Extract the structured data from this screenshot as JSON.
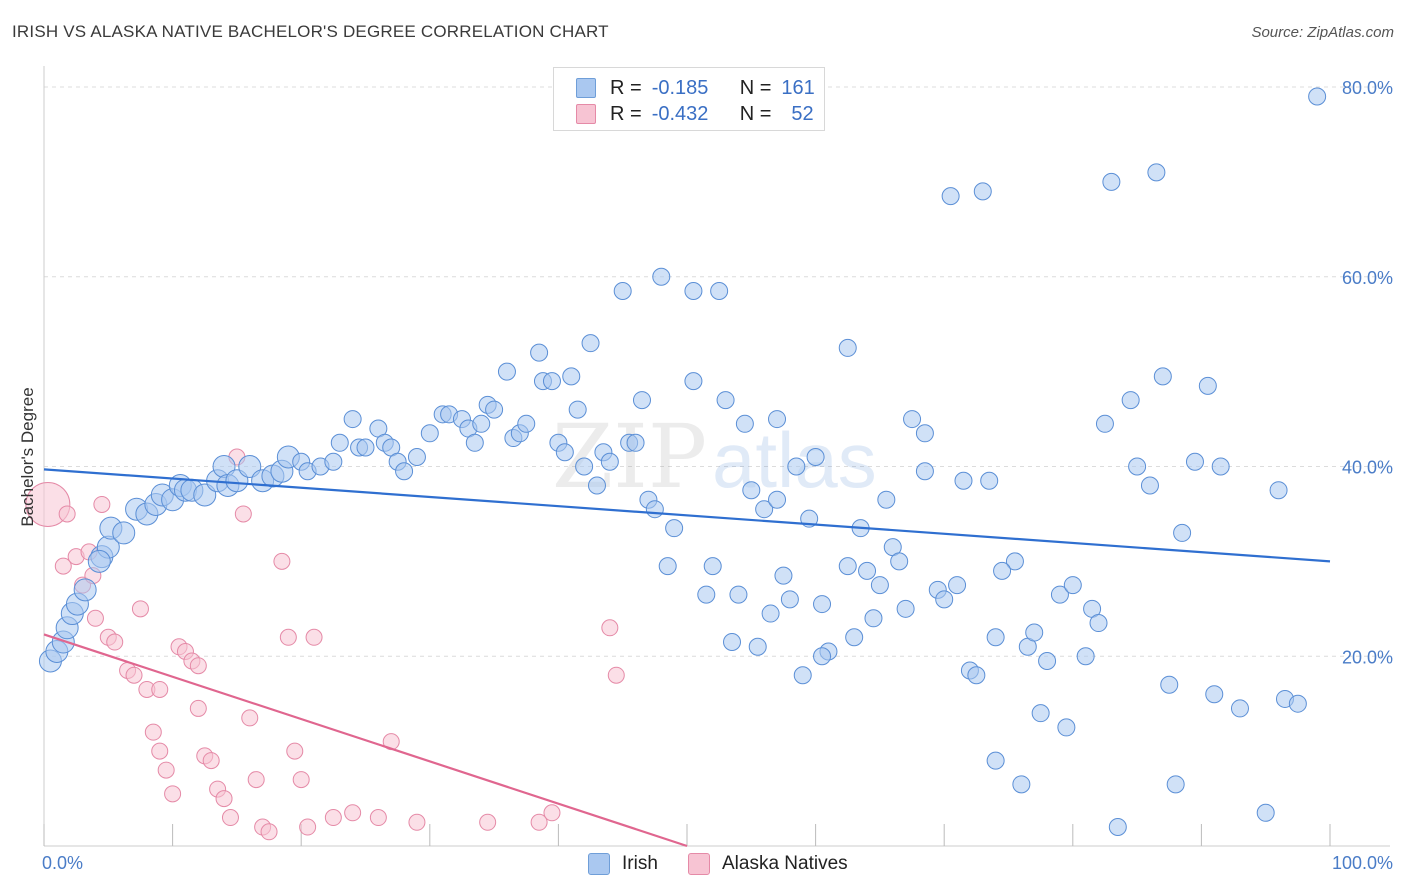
{
  "header": {
    "title": "IRISH VS ALASKA NATIVE BACHELOR'S DEGREE CORRELATION CHART",
    "source": "Source: ZipAtlas.com"
  },
  "legend": {
    "rows": [
      {
        "r_label": "R =",
        "r_value": "-0.185",
        "n_label": "N =",
        "n_value": "161",
        "color": "#aac8f0",
        "border": "#6f9ed8"
      },
      {
        "r_label": "R =",
        "r_value": "-0.432",
        "n_label": "N =",
        "n_value": "52",
        "color": "#f7c4d3",
        "border": "#e58aa7"
      }
    ]
  },
  "bottom_legend": [
    {
      "label": "Irish",
      "color": "#aac8f0",
      "border": "#6f9ed8"
    },
    {
      "label": "Alaska Natives",
      "color": "#f7c4d3",
      "border": "#e58aa7"
    }
  ],
  "watermark": {
    "zip": "ZIP",
    "atlas": "atlas"
  },
  "chart_data": {
    "type": "scatter",
    "title": "IRISH VS ALASKA NATIVE BACHELOR'S DEGREE CORRELATION CHART",
    "xlabel": "",
    "ylabel": "Bachelor's Degree",
    "xlim": [
      0,
      100
    ],
    "ylim": [
      0,
      80
    ],
    "x_tick_labels": [
      "0.0%",
      "100.0%"
    ],
    "y_tick_labels": [
      "20.0%",
      "40.0%",
      "60.0%",
      "80.0%"
    ],
    "y_ticks": [
      20,
      40,
      60,
      80
    ],
    "grid": true,
    "legend_position": "top-center",
    "series": [
      {
        "name": "Irish",
        "color": "#aac8f0",
        "stroke": "#5b8fd6",
        "trend": {
          "x": [
            0,
            100
          ],
          "y": [
            39.7,
            30.0
          ],
          "color": "#2f6fd0"
        },
        "points": [
          [
            0.5,
            19.5
          ],
          [
            1.0,
            20.5
          ],
          [
            1.5,
            21.5
          ],
          [
            1.8,
            23.0
          ],
          [
            2.2,
            24.5
          ],
          [
            2.6,
            25.5
          ],
          [
            3.2,
            27.0
          ],
          [
            4.5,
            30.5
          ],
          [
            5.0,
            31.5
          ],
          [
            4.3,
            30.0
          ],
          [
            5.2,
            33.5
          ],
          [
            6.2,
            33.0
          ],
          [
            7.2,
            35.5
          ],
          [
            8.0,
            35.0
          ],
          [
            8.7,
            36.0
          ],
          [
            9.2,
            37.0
          ],
          [
            10.0,
            36.5
          ],
          [
            10.6,
            38.0
          ],
          [
            11.0,
            37.5
          ],
          [
            11.5,
            37.5
          ],
          [
            12.5,
            37.0
          ],
          [
            13.5,
            38.5
          ],
          [
            14.0,
            40.0
          ],
          [
            14.3,
            38.0
          ],
          [
            15.0,
            38.5
          ],
          [
            16.0,
            40.0
          ],
          [
            17.0,
            38.5
          ],
          [
            17.8,
            39.0
          ],
          [
            18.5,
            39.5
          ],
          [
            19.0,
            41.0
          ],
          [
            20.0,
            40.5
          ],
          [
            20.5,
            39.5
          ],
          [
            21.5,
            40.0
          ],
          [
            22.5,
            40.5
          ],
          [
            23.0,
            42.5
          ],
          [
            24.0,
            45.0
          ],
          [
            24.5,
            42.0
          ],
          [
            25.0,
            42.0
          ],
          [
            26.0,
            44.0
          ],
          [
            26.5,
            42.5
          ],
          [
            27.0,
            42.0
          ],
          [
            27.5,
            40.5
          ],
          [
            28.0,
            39.5
          ],
          [
            29.0,
            41.0
          ],
          [
            30.0,
            43.5
          ],
          [
            31.0,
            45.5
          ],
          [
            31.5,
            45.5
          ],
          [
            32.5,
            45.0
          ],
          [
            33.0,
            44.0
          ],
          [
            33.5,
            42.5
          ],
          [
            34.0,
            44.5
          ],
          [
            34.5,
            46.5
          ],
          [
            35.0,
            46.0
          ],
          [
            36.0,
            50.0
          ],
          [
            36.5,
            43.0
          ],
          [
            37.0,
            43.5
          ],
          [
            37.5,
            44.5
          ],
          [
            38.5,
            52.0
          ],
          [
            38.8,
            49.0
          ],
          [
            39.5,
            49.0
          ],
          [
            40.0,
            42.5
          ],
          [
            40.5,
            41.5
          ],
          [
            41.0,
            49.5
          ],
          [
            41.5,
            46.0
          ],
          [
            42.0,
            40.0
          ],
          [
            42.5,
            53.0
          ],
          [
            43.0,
            38.0
          ],
          [
            43.5,
            41.5
          ],
          [
            44.0,
            40.5
          ],
          [
            45.0,
            58.5
          ],
          [
            45.5,
            42.5
          ],
          [
            46.0,
            42.5
          ],
          [
            46.5,
            47.0
          ],
          [
            47.0,
            36.5
          ],
          [
            47.5,
            35.5
          ],
          [
            48.0,
            60.0
          ],
          [
            48.5,
            29.5
          ],
          [
            49.0,
            33.5
          ],
          [
            50.5,
            49.0
          ],
          [
            50.5,
            58.5
          ],
          [
            51.5,
            26.5
          ],
          [
            52.0,
            29.5
          ],
          [
            52.5,
            58.5
          ],
          [
            53.0,
            47.0
          ],
          [
            53.5,
            21.5
          ],
          [
            54.0,
            26.5
          ],
          [
            54.5,
            44.5
          ],
          [
            55.0,
            37.5
          ],
          [
            55.5,
            21.0
          ],
          [
            56.0,
            35.5
          ],
          [
            56.5,
            24.5
          ],
          [
            57.0,
            45.0
          ],
          [
            57.5,
            28.5
          ],
          [
            58.0,
            26.0
          ],
          [
            58.5,
            40.0
          ],
          [
            59.0,
            18.0
          ],
          [
            59.5,
            34.5
          ],
          [
            60.0,
            41.0
          ],
          [
            60.5,
            25.5
          ],
          [
            61.0,
            20.5
          ],
          [
            62.5,
            52.5
          ],
          [
            62.5,
            29.5
          ],
          [
            63.0,
            22.0
          ],
          [
            64.0,
            29.0
          ],
          [
            64.5,
            24.0
          ],
          [
            65.0,
            27.5
          ],
          [
            65.5,
            36.5
          ],
          [
            66.0,
            31.5
          ],
          [
            67.0,
            25.0
          ],
          [
            68.5,
            39.5
          ],
          [
            68.5,
            43.5
          ],
          [
            69.5,
            27.0
          ],
          [
            70.0,
            26.0
          ],
          [
            70.5,
            68.5
          ],
          [
            71.5,
            38.5
          ],
          [
            72.0,
            18.5
          ],
          [
            72.5,
            18.0
          ],
          [
            73.0,
            69.0
          ],
          [
            73.5,
            38.5
          ],
          [
            74.0,
            9.0
          ],
          [
            75.5,
            30.0
          ],
          [
            76.0,
            6.5
          ],
          [
            76.5,
            21.0
          ],
          [
            77.0,
            22.5
          ],
          [
            77.5,
            14.0
          ],
          [
            78.0,
            19.5
          ],
          [
            79.0,
            26.5
          ],
          [
            79.5,
            12.5
          ],
          [
            80.0,
            27.5
          ],
          [
            81.0,
            20.0
          ],
          [
            81.5,
            25.0
          ],
          [
            82.0,
            23.5
          ],
          [
            82.5,
            44.5
          ],
          [
            83.0,
            70.0
          ],
          [
            83.5,
            2.0
          ],
          [
            84.5,
            47.0
          ],
          [
            85.0,
            40.0
          ],
          [
            86.5,
            71.0
          ],
          [
            87.0,
            49.5
          ],
          [
            87.5,
            17.0
          ],
          [
            88.0,
            6.5
          ],
          [
            88.5,
            33.0
          ],
          [
            89.5,
            40.5
          ],
          [
            90.5,
            48.5
          ],
          [
            91.0,
            16.0
          ],
          [
            93.0,
            14.5
          ],
          [
            95.0,
            3.5
          ],
          [
            96.5,
            15.5
          ],
          [
            97.5,
            15.0
          ],
          [
            96.0,
            37.5
          ],
          [
            99.0,
            79.0
          ],
          [
            91.5,
            40.0
          ],
          [
            86.0,
            38.0
          ],
          [
            67.5,
            45.0
          ],
          [
            57.0,
            36.5
          ],
          [
            66.5,
            30.0
          ],
          [
            74.5,
            29.0
          ],
          [
            74.0,
            22.0
          ],
          [
            71.0,
            27.5
          ],
          [
            60.5,
            20.0
          ],
          [
            63.5,
            33.5
          ]
        ]
      },
      {
        "name": "Alaska Natives",
        "color": "#f7c4d3",
        "stroke": "#e58aa7",
        "trend": {
          "x": [
            0,
            50
          ],
          "y": [
            22.3,
            0.0
          ],
          "color": "#e0668f"
        },
        "points": [
          [
            0.3,
            36.0
          ],
          [
            1.8,
            35.0
          ],
          [
            2.5,
            30.5
          ],
          [
            1.5,
            29.5
          ],
          [
            3.5,
            31.0
          ],
          [
            3.0,
            27.5
          ],
          [
            3.8,
            28.5
          ],
          [
            4.5,
            36.0
          ],
          [
            4.0,
            24.0
          ],
          [
            5.0,
            22.0
          ],
          [
            5.5,
            21.5
          ],
          [
            6.5,
            18.5
          ],
          [
            7.0,
            18.0
          ],
          [
            7.5,
            25.0
          ],
          [
            8.0,
            16.5
          ],
          [
            8.5,
            12.0
          ],
          [
            9.0,
            10.0
          ],
          [
            9.5,
            8.0
          ],
          [
            10.0,
            5.5
          ],
          [
            10.5,
            21.0
          ],
          [
            11.0,
            20.5
          ],
          [
            11.5,
            19.5
          ],
          [
            12.0,
            14.5
          ],
          [
            12.5,
            9.5
          ],
          [
            13.0,
            9.0
          ],
          [
            13.5,
            6.0
          ],
          [
            14.0,
            5.0
          ],
          [
            14.5,
            3.0
          ],
          [
            15.0,
            41.0
          ],
          [
            15.5,
            35.0
          ],
          [
            16.0,
            13.5
          ],
          [
            16.5,
            7.0
          ],
          [
            17.0,
            2.0
          ],
          [
            17.5,
            1.5
          ],
          [
            18.5,
            30.0
          ],
          [
            19.0,
            22.0
          ],
          [
            19.5,
            10.0
          ],
          [
            20.0,
            7.0
          ],
          [
            20.5,
            2.0
          ],
          [
            21.0,
            22.0
          ],
          [
            22.5,
            3.0
          ],
          [
            24.0,
            3.5
          ],
          [
            26.0,
            3.0
          ],
          [
            27.0,
            11.0
          ],
          [
            29.0,
            2.5
          ],
          [
            34.5,
            2.5
          ],
          [
            38.5,
            2.5
          ],
          [
            39.5,
            3.5
          ],
          [
            44.0,
            23.0
          ],
          [
            44.5,
            18.0
          ],
          [
            12.0,
            19.0
          ],
          [
            9.0,
            16.5
          ]
        ]
      }
    ]
  }
}
